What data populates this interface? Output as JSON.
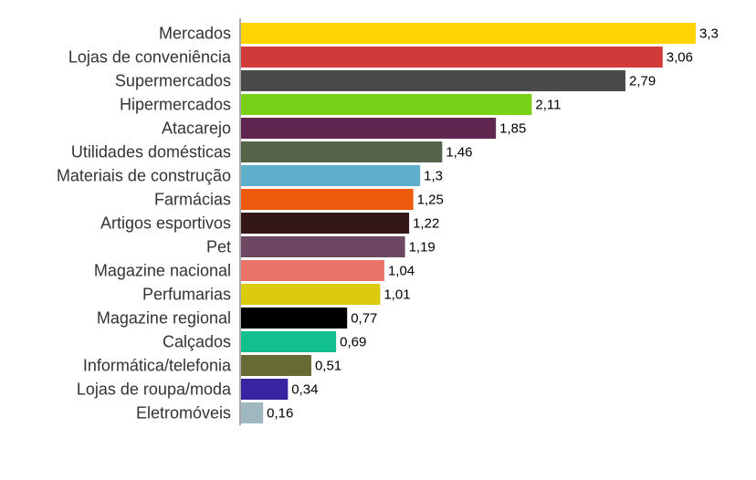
{
  "chart_data": {
    "type": "bar",
    "orientation": "horizontal",
    "title": "",
    "xlabel": "",
    "ylabel": "",
    "xlim": [
      0,
      3.3
    ],
    "grid": false,
    "legend": "none",
    "categories": [
      "Mercados",
      "Lojas de conveniência",
      "Supermercados",
      "Hipermercados",
      "Atacarejo",
      "Utilidades domésticas",
      "Materiais de construção",
      "Farmácias",
      "Artigos esportivos",
      "Pet",
      "Magazine nacional",
      "Perfumarias",
      "Magazine regional",
      "Calçados",
      "Informática/telefonia",
      "Lojas de roupa/moda",
      "Eletromóveis"
    ],
    "values": [
      3.3,
      3.06,
      2.79,
      2.11,
      1.85,
      1.46,
      1.3,
      1.25,
      1.22,
      1.19,
      1.04,
      1.01,
      0.77,
      0.69,
      0.51,
      0.34,
      0.16
    ],
    "value_labels": [
      "3,3",
      "3,06",
      "2,79",
      "2,11",
      "1,85",
      "1,46",
      "1,3",
      "1,25",
      "1,22",
      "1,19",
      "1,04",
      "1,01",
      "0,77",
      "0,69",
      "0,51",
      "0,34",
      "0,16"
    ],
    "colors": [
      "#ffd400",
      "#d23a3a",
      "#4a4a4a",
      "#78d017",
      "#602650",
      "#556448",
      "#5eafca",
      "#ec5a0c",
      "#341717",
      "#6e4862",
      "#ea736a",
      "#dcca0d",
      "#000000",
      "#12c08d",
      "#666a33",
      "#3624a0",
      "#9fb8c0"
    ]
  }
}
